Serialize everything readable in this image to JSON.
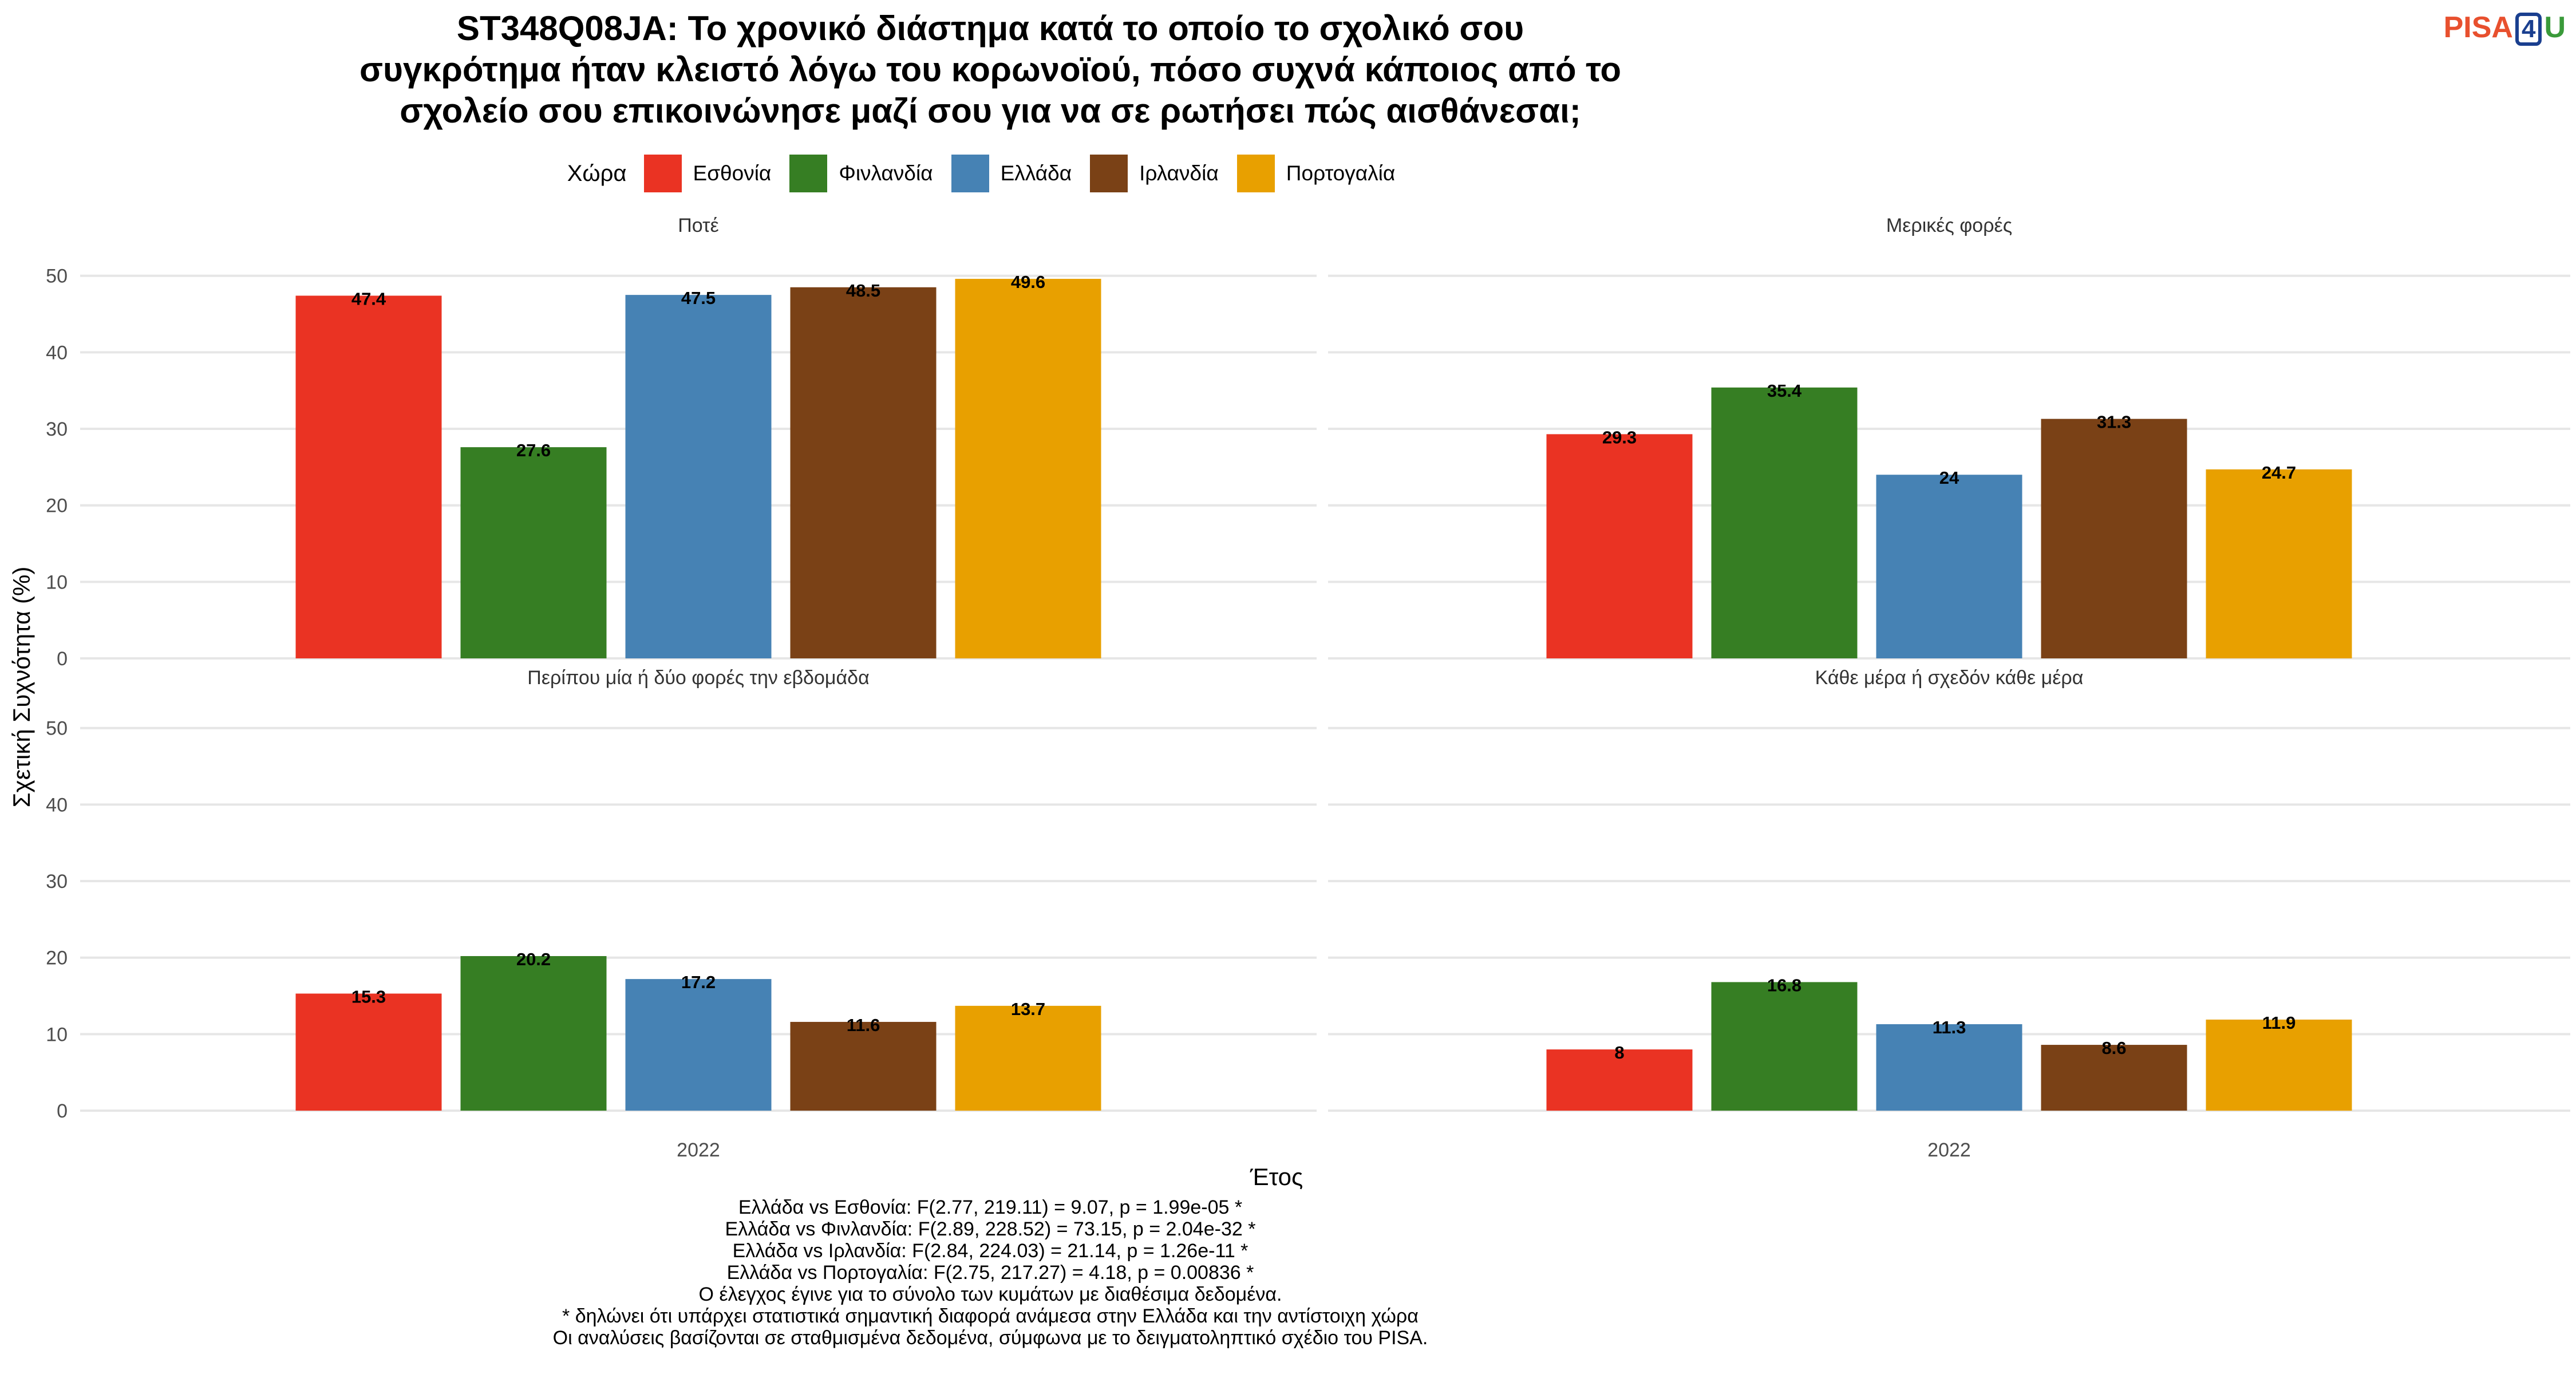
{
  "title_lines": [
    "ST348Q08JA: Το χρονικό διάστημα κατά το οποίο το σχολικό σου",
    "συγκρότημα ήταν κλειστό λόγω του κορωνοϊού, πόσο συχνά κάποιος από το",
    "σχολείο σου επικοινώνησε μαζί σου για να σε ρωτήσει πώς αισθάνεσαι;"
  ],
  "logo": {
    "part1": "PISA",
    "part2": "4",
    "part3": "U"
  },
  "legend_title": "Χώρα",
  "chart_data": {
    "type": "bar",
    "xlabel": "Έτος",
    "ylabel": "Σχετική Συχνότητα (%)",
    "ylim": [
      0,
      52
    ],
    "yticks": [
      0,
      10,
      20,
      30,
      40,
      50
    ],
    "x_category": "2022",
    "grid": true,
    "legend_position": "top",
    "series": [
      {
        "name": "Εσθονία",
        "color": "#EA3323"
      },
      {
        "name": "Φινλανδία",
        "color": "#367E23"
      },
      {
        "name": "Ελλάδα",
        "color": "#4682B4"
      },
      {
        "name": "Ιρλανδία",
        "color": "#7A4116"
      },
      {
        "name": "Πορτογαλία",
        "color": "#E8A000"
      }
    ],
    "facets": [
      {
        "label": "Ποτέ",
        "values": [
          47.4,
          27.6,
          47.5,
          48.5,
          49.6
        ],
        "value_labels": [
          "47.4",
          "27.6",
          "47.5",
          "48.5",
          "49.6"
        ]
      },
      {
        "label": "Μερικές φορές",
        "values": [
          29.3,
          35.4,
          24,
          31.3,
          24.7
        ],
        "value_labels": [
          "29.3",
          "35.4",
          "24",
          "31.3",
          "24.7"
        ]
      },
      {
        "label": "Περίπου μία ή δύο φορές την εβδομάδα",
        "values": [
          15.3,
          20.2,
          17.2,
          11.6,
          13.7
        ],
        "value_labels": [
          "15.3",
          "20.2",
          "17.2",
          "11.6",
          "13.7"
        ]
      },
      {
        "label": "Κάθε μέρα ή σχεδόν κάθε μέρα",
        "values": [
          8,
          16.8,
          11.3,
          8.6,
          11.9
        ],
        "value_labels": [
          "8",
          "16.8",
          "11.3",
          "8.6",
          "11.9"
        ]
      }
    ]
  },
  "footer_lines": [
    "Ελλάδα vs Εσθονία: F(2.77, 219.11) = 9.07, p = 1.99e-05 *",
    "Ελλάδα vs Φινλανδία: F(2.89, 228.52) = 73.15, p = 2.04e-32 *",
    "Ελλάδα vs Ιρλανδία: F(2.84, 224.03) = 21.14, p = 1.26e-11 *",
    "Ελλάδα vs Πορτογαλία: F(2.75, 217.27) = 4.18, p = 0.00836 *",
    "Ο έλεγχος έγινε για το σύνολο των κυμάτων με διαθέσιμα δεδομένα.",
    "* δηλώνει ότι υπάρχει στατιστικά σημαντική διαφορά ανάμεσα στην Ελλάδα και την αντίστοιχη χώρα",
    "Οι αναλύσεις βασίζονται σε σταθμισμένα δεδομένα, σύμφωνα με το δειγματοληπτικό σχέδιο του PISA."
  ]
}
